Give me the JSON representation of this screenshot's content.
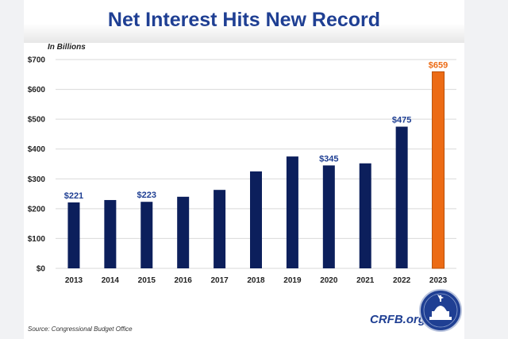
{
  "title": "Net Interest Hits New Record",
  "units_note": "In Billions",
  "source": "Source: Congressional Budget Office",
  "brand": "CRFB.org",
  "colors": {
    "bar": "#0c1f5c",
    "highlight": "#ec6b15",
    "label": "#1f3f93",
    "grid": "#d9d9d9"
  },
  "chart_data": {
    "type": "bar",
    "title": "Net Interest Hits New Record",
    "ylabel": "In Billions",
    "xlabel": "",
    "categories": [
      "2013",
      "2014",
      "2015",
      "2016",
      "2017",
      "2018",
      "2019",
      "2020",
      "2021",
      "2022",
      "2023"
    ],
    "values": [
      221,
      229,
      223,
      240,
      263,
      325,
      375,
      345,
      352,
      475,
      659
    ],
    "highlight_index": 10,
    "data_labels": [
      {
        "index": 0,
        "text": "$221"
      },
      {
        "index": 2,
        "text": "$223"
      },
      {
        "index": 7,
        "text": "$345"
      },
      {
        "index": 9,
        "text": "$475"
      },
      {
        "index": 10,
        "text": "$659"
      }
    ],
    "yticks": [
      0,
      100,
      200,
      300,
      400,
      500,
      600,
      700
    ],
    "ytick_labels": [
      "$0",
      "$100",
      "$200",
      "$300",
      "$400",
      "$500",
      "$600",
      "$700"
    ],
    "ylim": [
      0,
      700
    ],
    "grid": true,
    "legend": "none"
  }
}
